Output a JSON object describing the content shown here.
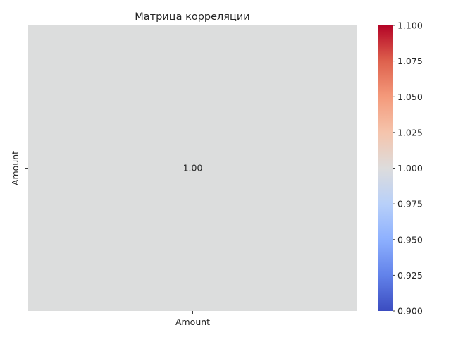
{
  "chart_data": {
    "type": "heatmap",
    "title": "Матрица корреляции",
    "x_categories": [
      "Amount"
    ],
    "y_categories": [
      "Amount"
    ],
    "values": [
      [
        1.0
      ]
    ],
    "cell_labels": [
      [
        "1.00"
      ]
    ],
    "colormap": "coolwarm",
    "colorbar": {
      "range": [
        0.9,
        1.1
      ],
      "ticks": [
        "0.900",
        "0.925",
        "0.950",
        "0.975",
        "1.000",
        "1.025",
        "1.050",
        "1.075",
        "1.100"
      ]
    },
    "colors": {
      "cell": "#dcdddd",
      "cmap_stops": [
        "#3b4cc0",
        "#6282ea",
        "#8db0fe",
        "#b8d0f9",
        "#dddcdc",
        "#f5c4ac",
        "#f49a7b",
        "#de614d",
        "#b40426"
      ]
    }
  }
}
